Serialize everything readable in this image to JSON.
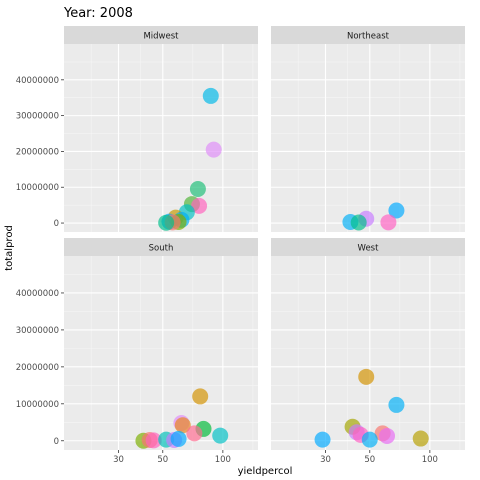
{
  "chart_data": {
    "type": "scatter",
    "title": "Year: 2008",
    "xlabel": "yieldpercol",
    "ylabel": "totalprod",
    "x_scale": "log10",
    "xlim": [
      16,
      150
    ],
    "ylim": [
      -2500000,
      50000000
    ],
    "x_ticks": [
      30,
      50,
      100
    ],
    "x_tick_labels": [
      "30",
      "50",
      "100"
    ],
    "y_ticks": [
      0,
      10000000,
      20000000,
      30000000,
      40000000
    ],
    "y_tick_labels": [
      "0",
      "10000000",
      "20000000",
      "30000000",
      "40000000"
    ],
    "grid": true,
    "legend": "none",
    "facet_labels": [
      "Midwest",
      "Northeast",
      "South",
      "West"
    ],
    "facets": [
      {
        "name": "Midwest",
        "points": [
          {
            "x": 87,
            "y": 35500000,
            "color": "#00B8E7"
          },
          {
            "x": 90,
            "y": 20500000,
            "color": "#DE8CF8"
          },
          {
            "x": 75,
            "y": 9500000,
            "color": "#1DBE78"
          },
          {
            "x": 70,
            "y": 5300000,
            "color": "#4FB437"
          },
          {
            "x": 76,
            "y": 4800000,
            "color": "#FF62BC"
          },
          {
            "x": 66,
            "y": 3000000,
            "color": "#00BFC4"
          },
          {
            "x": 58,
            "y": 1500000,
            "color": "#C49A00"
          },
          {
            "x": 62,
            "y": 900000,
            "color": "#00B0F6"
          },
          {
            "x": 54,
            "y": 400000,
            "color": "#00A9FF"
          },
          {
            "x": 60,
            "y": 300000,
            "color": "#7CAE00"
          },
          {
            "x": 56,
            "y": 200000,
            "color": "#F8766D"
          },
          {
            "x": 52,
            "y": 100000,
            "color": "#00C08B"
          }
        ]
      },
      {
        "name": "Northeast",
        "points": [
          {
            "x": 68,
            "y": 3500000,
            "color": "#00A9FF"
          },
          {
            "x": 48,
            "y": 1200000,
            "color": "#C77CFF"
          },
          {
            "x": 40,
            "y": 300000,
            "color": "#00B0F6"
          },
          {
            "x": 44,
            "y": 150000,
            "color": "#00C08B"
          },
          {
            "x": 62,
            "y": 200000,
            "color": "#FF61C3"
          }
        ]
      },
      {
        "name": "South",
        "points": [
          {
            "x": 77,
            "y": 12000000,
            "color": "#D39200"
          },
          {
            "x": 62,
            "y": 4800000,
            "color": "#DE8CF8"
          },
          {
            "x": 63,
            "y": 4200000,
            "color": "#E7861B"
          },
          {
            "x": 80,
            "y": 3200000,
            "color": "#00BA38"
          },
          {
            "x": 72,
            "y": 2000000,
            "color": "#FF6C91"
          },
          {
            "x": 97,
            "y": 1400000,
            "color": "#00BFC4"
          },
          {
            "x": 40,
            "y": 0,
            "color": "#7CAE00"
          },
          {
            "x": 43,
            "y": 200000,
            "color": "#F8766D"
          },
          {
            "x": 45,
            "y": 100000,
            "color": "#FF62BC"
          },
          {
            "x": 52,
            "y": 300000,
            "color": "#00C0B8"
          },
          {
            "x": 57,
            "y": 200000,
            "color": "#C77CFF"
          },
          {
            "x": 60,
            "y": 500000,
            "color": "#00A9FF"
          }
        ]
      },
      {
        "name": "West",
        "points": [
          {
            "x": 48,
            "y": 17300000,
            "color": "#D39200"
          },
          {
            "x": 68,
            "y": 9700000,
            "color": "#00B0F6"
          },
          {
            "x": 41,
            "y": 3800000,
            "color": "#A3A500"
          },
          {
            "x": 43,
            "y": 2300000,
            "color": "#C77CFF"
          },
          {
            "x": 45,
            "y": 1600000,
            "color": "#FF61C3"
          },
          {
            "x": 58,
            "y": 2000000,
            "color": "#F8766D"
          },
          {
            "x": 61,
            "y": 1300000,
            "color": "#E76BF3"
          },
          {
            "x": 50,
            "y": 300000,
            "color": "#00B0F6"
          },
          {
            "x": 29,
            "y": 300000,
            "color": "#00A9FF"
          },
          {
            "x": 90,
            "y": 600000,
            "color": "#B79F00"
          }
        ]
      }
    ]
  }
}
